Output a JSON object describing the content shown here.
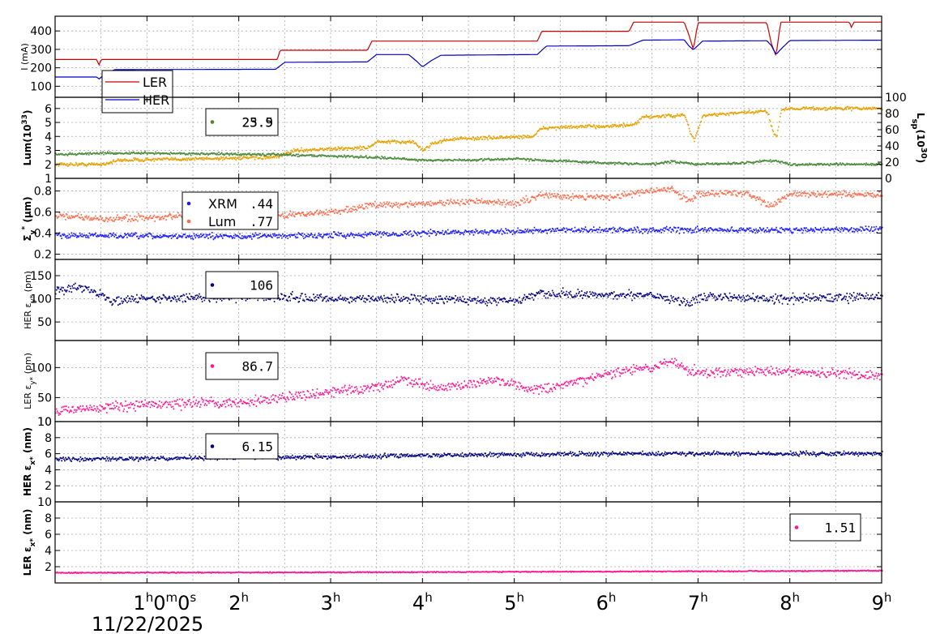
{
  "chart_data": {
    "type": "line",
    "date_label": "11/22/2025",
    "x_axis": {
      "unit": "hours",
      "range": [
        0,
        9
      ],
      "ticks": [
        {
          "h": 1,
          "label": "1",
          "sup1": "h",
          "mid1": "0",
          "sup2": "m",
          "mid2": "0",
          "sup3": "s"
        },
        {
          "h": 2,
          "label": "2",
          "sup1": "h"
        },
        {
          "h": 3,
          "label": "3",
          "sup1": "h"
        },
        {
          "h": 4,
          "label": "4",
          "sup1": "h"
        },
        {
          "h": 5,
          "label": "5",
          "sup1": "h"
        },
        {
          "h": 6,
          "label": "6",
          "sup1": "h"
        },
        {
          "h": 7,
          "label": "7",
          "sup1": "h"
        },
        {
          "h": 8,
          "label": "8",
          "sup1": "h"
        },
        {
          "h": 9,
          "label": "9",
          "sup1": "h"
        }
      ]
    },
    "panels": [
      {
        "id": "current",
        "ylabel": "I (mA)",
        "ylim": [
          40,
          480
        ],
        "yticks": [
          100,
          200,
          300,
          400
        ],
        "legend": {
          "type": "lines",
          "entries": [
            {
              "name": "LER",
              "color": "#cc0000"
            },
            {
              "name": "HER",
              "color": "#0000cc"
            }
          ]
        },
        "series": [
          {
            "name": "LER",
            "color": "#cc0000",
            "style": "line",
            "x": [
              0,
              0.45,
              0.48,
              0.5,
              2.42,
              2.45,
              3.4,
              3.45,
              5.25,
              5.3,
              6.25,
              6.3,
              6.85,
              6.9,
              6.95,
              7.0,
              7.75,
              7.8,
              7.85,
              7.9,
              8.65,
              8.67,
              8.7,
              9.0
            ],
            "y": [
              245,
              245,
              215,
              245,
              245,
              295,
              295,
              345,
              345,
              398,
              398,
              448,
              448,
              380,
              300,
              445,
              445,
              330,
              265,
              448,
              448,
              420,
              448,
              448
            ]
          },
          {
            "name": "HER",
            "color": "#0000cc",
            "style": "line",
            "x": [
              0,
              0.45,
              0.48,
              0.55,
              0.65,
              2.4,
              2.5,
              3.4,
              3.5,
              3.85,
              3.95,
              4.0,
              4.1,
              4.2,
              5.25,
              5.35,
              6.25,
              6.4,
              6.85,
              6.9,
              6.95,
              7.05,
              7.75,
              7.8,
              7.85,
              7.9,
              8.0,
              9.0
            ],
            "y": [
              150,
              150,
              140,
              170,
              190,
              192,
              230,
              232,
              272,
              272,
              230,
              205,
              240,
              268,
              272,
              318,
              320,
              350,
              352,
              320,
              298,
              345,
              347,
              320,
              272,
              300,
              348,
              350
            ]
          }
        ]
      },
      {
        "id": "luminosity",
        "ylabel": "Lum(10",
        "ylabel_sup": "33",
        "ylabel_end": ")",
        "ylim": [
          1,
          6.8
        ],
        "yticks": [
          1,
          2,
          3,
          4,
          5,
          6
        ],
        "ytick_labels": [
          "1",
          "2",
          "3",
          "4",
          "5",
          "6"
        ],
        "ylabel_right": "L",
        "ylabel_right_sub": "sp",
        "ylabel_right_mid": "(10",
        "ylabel_right_sup": "30",
        "ylabel_right_end": ")",
        "yticks_right": [
          0,
          20,
          40,
          60,
          80,
          100
        ],
        "ylim_right": [
          0,
          100
        ],
        "legend": {
          "type": "values",
          "entries": [
            {
              "color": "#e6a000",
              "value": "25.9"
            },
            {
              "color": "#4a8a3c",
              "value": "23.5"
            }
          ]
        },
        "series": [
          {
            "name": "",
            "color": "#e6a000",
            "style": "noisy",
            "noise": 0.12,
            "x": [
              0,
              0.5,
              0.7,
              2.4,
              2.6,
              3.4,
              3.5,
              3.9,
              4.0,
              4.1,
              4.3,
              5.2,
              5.3,
              6.3,
              6.4,
              6.85,
              6.9,
              6.95,
              7.05,
              7.75,
              7.8,
              7.85,
              7.9,
              8.0,
              9.0
            ],
            "y": [
              2.0,
              2.0,
              2.3,
              2.5,
              3.0,
              3.2,
              3.6,
              3.6,
              3.0,
              3.5,
              3.8,
              4.0,
              4.6,
              4.8,
              5.4,
              5.5,
              4.5,
              3.7,
              5.5,
              5.8,
              4.6,
              3.9,
              5.9,
              6.0,
              6.0
            ]
          },
          {
            "name": "",
            "color": "#4a8a3c",
            "style": "noisy",
            "noise": 0.08,
            "x": [
              0,
              0.5,
              1.0,
              2.4,
              3.0,
              3.5,
              4.0,
              4.5,
              5.0,
              5.3,
              6.0,
              6.5,
              6.7,
              7.0,
              7.5,
              7.8,
              8.0,
              9.0
            ],
            "y": [
              2.7,
              2.8,
              2.8,
              2.7,
              2.6,
              2.5,
              2.3,
              2.3,
              2.4,
              2.3,
              2.1,
              2.0,
              2.2,
              2.0,
              2.1,
              2.3,
              2.0,
              2.0
            ]
          }
        ]
      },
      {
        "id": "sigma",
        "ylabel": "Σ",
        "ylabel_sub": "y",
        "ylabel_sup": "*",
        "ylabel_end": " (μm)",
        "ylim": [
          0.15,
          0.92
        ],
        "yticks": [
          0.2,
          0.4,
          0.6,
          0.8
        ],
        "ytick_labels": [
          "0.2",
          "0.4",
          "0.6",
          "0.8"
        ],
        "legend": {
          "type": "named",
          "entries": [
            {
              "name": "XRM",
              "color": "#1a1aff",
              "value": ".44"
            },
            {
              "name": "Lum",
              "color": "#ff6a4a",
              "value": ".77"
            }
          ]
        },
        "series": [
          {
            "name": "XRM",
            "color": "#1a1aff",
            "style": "noisy",
            "noise": 0.025,
            "x": [
              0,
              1,
              2,
              3,
              4,
              5,
              6,
              7,
              8,
              9
            ],
            "y": [
              0.38,
              0.37,
              0.37,
              0.38,
              0.4,
              0.42,
              0.43,
              0.43,
              0.43,
              0.44
            ]
          },
          {
            "name": "Lum",
            "color": "#ff6a4a",
            "style": "noisy",
            "noise": 0.03,
            "x": [
              0,
              0.5,
              1,
              2,
              2.5,
              3,
              3.5,
              4,
              4.5,
              5,
              5.3,
              6,
              6.5,
              6.7,
              6.9,
              7.0,
              7.5,
              7.8,
              7.9,
              8.0,
              9.0
            ],
            "y": [
              0.57,
              0.53,
              0.55,
              0.55,
              0.57,
              0.6,
              0.67,
              0.68,
              0.7,
              0.68,
              0.76,
              0.74,
              0.8,
              0.82,
              0.7,
              0.78,
              0.78,
              0.66,
              0.72,
              0.77,
              0.76
            ]
          }
        ]
      },
      {
        "id": "her_eps_y",
        "ylabel": "HER ε",
        "ylabel_sub": "y*",
        "ylabel_end": " (pm)",
        "ylim": [
          10,
          185
        ],
        "yticks": [
          50,
          100,
          150
        ],
        "legend": {
          "type": "values",
          "entries": [
            {
              "color": "#000080",
              "value": "106"
            }
          ]
        },
        "series": [
          {
            "name": "",
            "color": "#000080",
            "style": "noisy",
            "noise": 9,
            "x": [
              0,
              0.3,
              0.5,
              0.6,
              1,
              2,
              3,
              4,
              5,
              5.3,
              6,
              6.5,
              6.9,
              7,
              8,
              9
            ],
            "y": [
              120,
              125,
              110,
              95,
              100,
              105,
              100,
              100,
              95,
              110,
              108,
              110,
              90,
              105,
              100,
              106
            ]
          }
        ]
      },
      {
        "id": "ler_eps_y",
        "ylabel": "LER ε",
        "ylabel_sub": "y*",
        "ylabel_end": " (pm)",
        "ylim": [
          10,
          145
        ],
        "yticks": [
          10,
          50,
          100
        ],
        "legend": {
          "type": "values",
          "entries": [
            {
              "color": "#ff1493",
              "value": "86.7"
            }
          ]
        },
        "series": [
          {
            "name": "",
            "color": "#ff1493",
            "style": "noisy",
            "noise": 8,
            "x": [
              0,
              1,
              2,
              2.5,
              3,
              3.5,
              3.8,
              4.2,
              4.8,
              5.2,
              5.5,
              6.0,
              6.5,
              6.7,
              7.0,
              7.5,
              8.0,
              8.5,
              9.0
            ],
            "y": [
              28,
              38,
              42,
              50,
              60,
              68,
              80,
              65,
              80,
              62,
              68,
              90,
              100,
              110,
              90,
              95,
              92,
              90,
              87
            ]
          }
        ]
      },
      {
        "id": "her_eps_x",
        "ylabel": "HER ε",
        "ylabel_sub": "x*",
        "ylabel_end": " (nm)",
        "ylim": [
          0,
          10
        ],
        "yticks": [
          2,
          4,
          6,
          8,
          10
        ],
        "legend": {
          "type": "values",
          "entries": [
            {
              "color": "#000080",
              "value": "6.15"
            }
          ]
        },
        "series": [
          {
            "name": "",
            "color": "#000080",
            "style": "noisy",
            "noise": 0.25,
            "x": [
              0,
              1,
              2,
              3,
              4,
              5,
              6,
              7,
              8,
              9
            ],
            "y": [
              5.3,
              5.4,
              5.5,
              5.6,
              5.8,
              5.9,
              6.0,
              6.0,
              6.0,
              6.0
            ]
          }
        ]
      },
      {
        "id": "ler_eps_x",
        "ylabel": "LER ε",
        "ylabel_sub": "x*",
        "ylabel_end": " (nm)",
        "ylim": [
          0,
          10
        ],
        "yticks": [
          2,
          4,
          6,
          8,
          10
        ],
        "legend": {
          "type": "values",
          "entries": [
            {
              "color": "#ff1493",
              "value": "1.51"
            }
          ]
        },
        "series": [
          {
            "name": "",
            "color": "#ff1493",
            "style": "noisy",
            "noise": 0.06,
            "x": [
              0,
              3,
              6,
              9
            ],
            "y": [
              1.25,
              1.3,
              1.4,
              1.5
            ]
          }
        ]
      }
    ]
  }
}
